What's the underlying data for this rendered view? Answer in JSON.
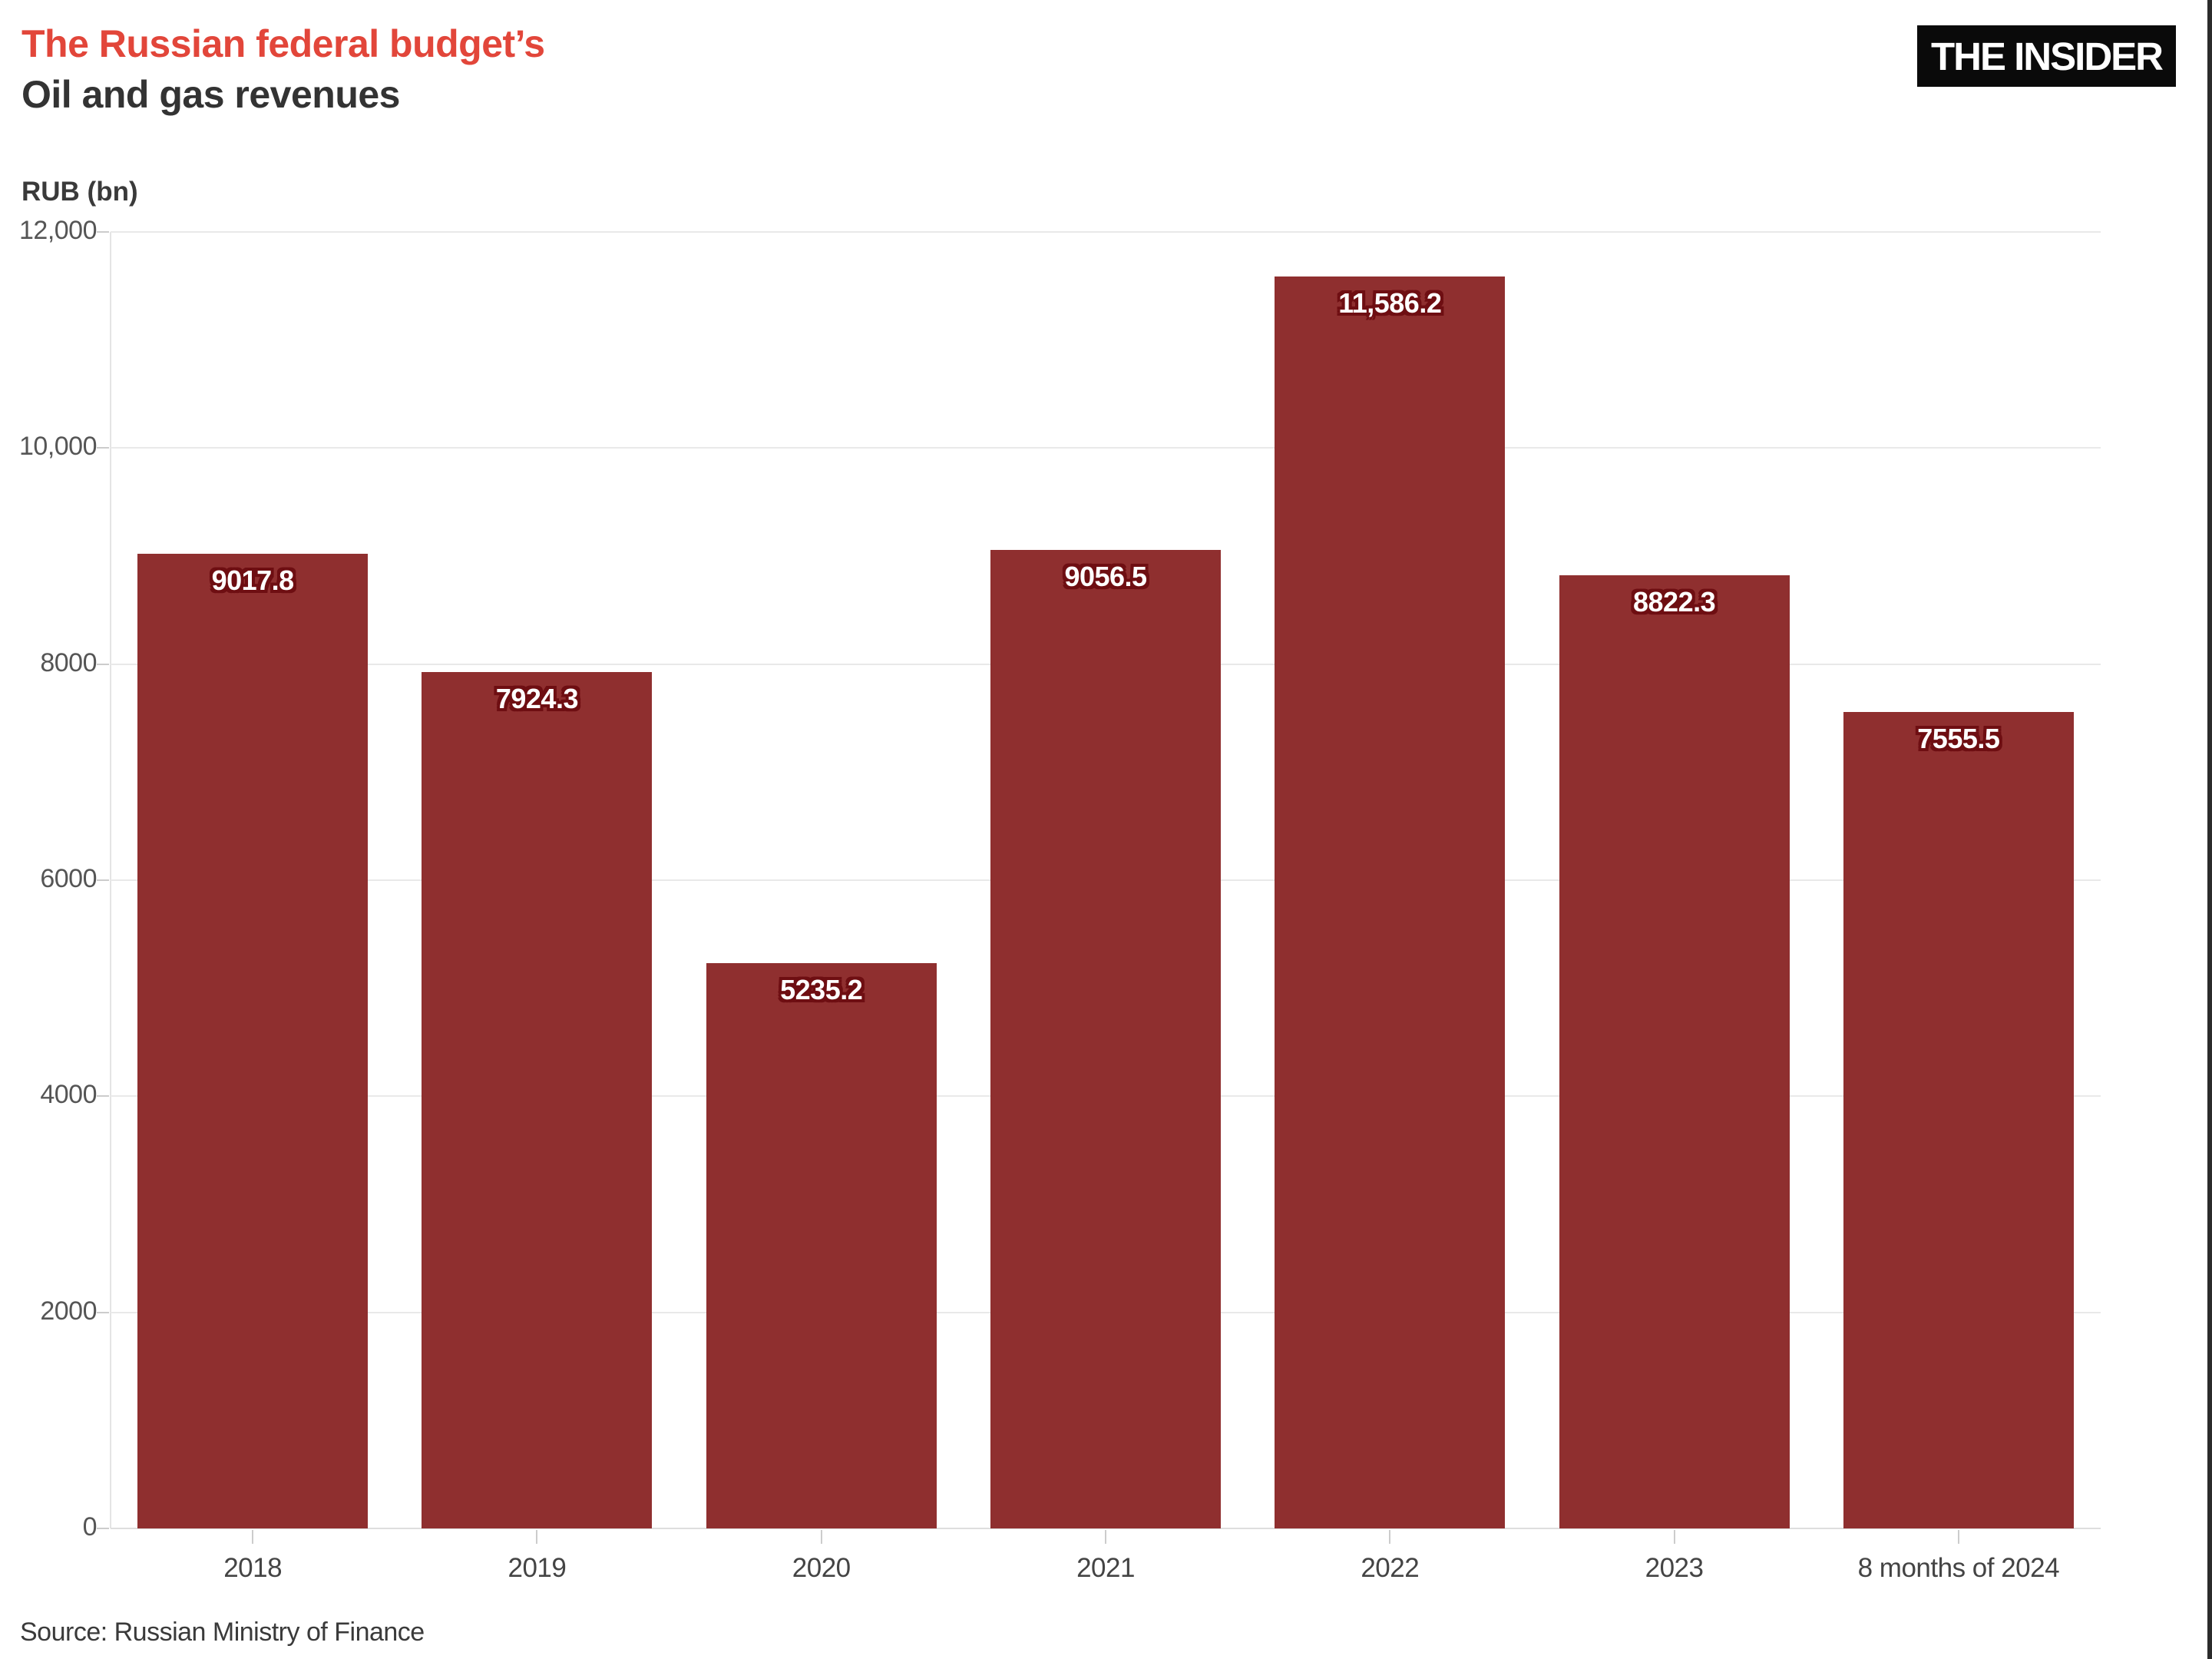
{
  "header": {
    "title_line1": "The Russian federal budget’s",
    "title_line2": "Oil and gas revenues",
    "logo_text": "THE INSIDER"
  },
  "chart_data": {
    "type": "bar",
    "title": "The Russian federal budget’s Oil and gas revenues",
    "ylabel": "RUB (bn)",
    "xlabel": "",
    "categories": [
      "2018",
      "2019",
      "2020",
      "2021",
      "2022",
      "2023",
      "8 months of 2024"
    ],
    "values": [
      9017.8,
      7924.3,
      5235.2,
      9056.5,
      11586.2,
      8822.3,
      7555.5
    ],
    "value_labels": [
      "9017.8",
      "7924.3",
      "5235.2",
      "9056.5",
      "11,586.2",
      "8822.3",
      "7555.5"
    ],
    "ylim": [
      0,
      12000
    ],
    "yticks": [
      {
        "value": 0,
        "label": "0"
      },
      {
        "value": 2000,
        "label": "2000"
      },
      {
        "value": 4000,
        "label": "4000"
      },
      {
        "value": 6000,
        "label": "6000"
      },
      {
        "value": 8000,
        "label": "8000"
      },
      {
        "value": 10000,
        "label": "10,000"
      },
      {
        "value": 12000,
        "label": "12,000"
      }
    ],
    "grid": true,
    "legend_position": "none",
    "bar_color": "#8f2f2f",
    "value_label_color": "#ffffff",
    "value_label_outline_color": "#6e0e12"
  },
  "footer": {
    "source": "Source: Russian Ministry of Finance"
  },
  "colors": {
    "title_accent": "#e2463a",
    "title_dark": "#333333",
    "gridline": "#e9e9e9",
    "axis": "#dedede",
    "tick": "#cccccc",
    "background": "#ffffff",
    "logo_background": "#0a0a0a",
    "right_edge_strip": "#2b2b2b"
  }
}
